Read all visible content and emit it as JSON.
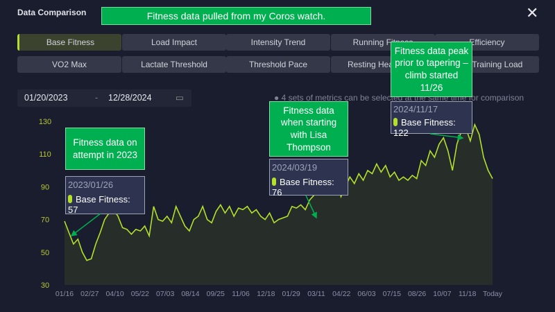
{
  "header": {
    "title": "Data Comparison",
    "banner": "Fitness data pulled from my Coros watch.",
    "close_icon": "close-icon"
  },
  "metrics": {
    "row1": [
      "Base Fitness",
      "Load Impact",
      "Intensity Trend",
      "Running Fitness",
      "Efficiency"
    ],
    "row2": [
      "VO2 Max",
      "Lactate Threshold",
      "Threshold Pace",
      "Resting Heart Rate",
      "Daily Training Load"
    ],
    "active": "Base Fitness"
  },
  "date_range": {
    "start": "01/20/2023",
    "separator": "-",
    "end": "12/28/2024",
    "calendar_icon": "calendar-icon"
  },
  "info_text": "4 sets of metrics can be selected at the same time for comparison",
  "annotations": [
    {
      "note": "Fitness data on attempt in 2023",
      "date": "2023/01/26",
      "label": "Base Fitness: 57"
    },
    {
      "note": "Fitness data when starting with Lisa Thompson",
      "date": "2024/03/19",
      "label": "Base Fitness: 76"
    },
    {
      "note": "Fitness data peak prior to tapering – climb started 11/26",
      "date": "2024/11/17",
      "label": "Base Fitness: 122"
    }
  ],
  "chart_data": {
    "type": "area",
    "series": [
      {
        "name": "Base Fitness",
        "color": "#b5e02a",
        "values": [
          69,
          62,
          55,
          58,
          50,
          45,
          46,
          55,
          62,
          70,
          74,
          76,
          72,
          65,
          64,
          61,
          64,
          63,
          66,
          60,
          78,
          70,
          69,
          72,
          68,
          78,
          72,
          66,
          63,
          70,
          72,
          78,
          70,
          68,
          75,
          79,
          74,
          78,
          72,
          77,
          76,
          78,
          74,
          76,
          72,
          70,
          74,
          68,
          70,
          71,
          72,
          78,
          77,
          79,
          76,
          82,
          85,
          96,
          90,
          100,
          88,
          95,
          84,
          90,
          96,
          92,
          98,
          94,
          100,
          98,
          104,
          99,
          103,
          96,
          99,
          94,
          96,
          94,
          97,
          95,
          106,
          103,
          112,
          108,
          116,
          120,
          112,
          100,
          116,
          124,
          126,
          118,
          128,
          122,
          108,
          100,
          95
        ]
      }
    ],
    "x_ticks": [
      "01/16",
      "02/27",
      "04/10",
      "05/22",
      "07/03",
      "08/14",
      "09/25",
      "11/06",
      "12/18",
      "01/29",
      "03/11",
      "04/22",
      "06/03",
      "07/15",
      "08/26",
      "10/07",
      "11/18",
      "Today"
    ],
    "y_ticks": [
      30,
      50,
      70,
      90,
      110,
      130
    ],
    "ylim": [
      30,
      130
    ],
    "grid": false
  }
}
